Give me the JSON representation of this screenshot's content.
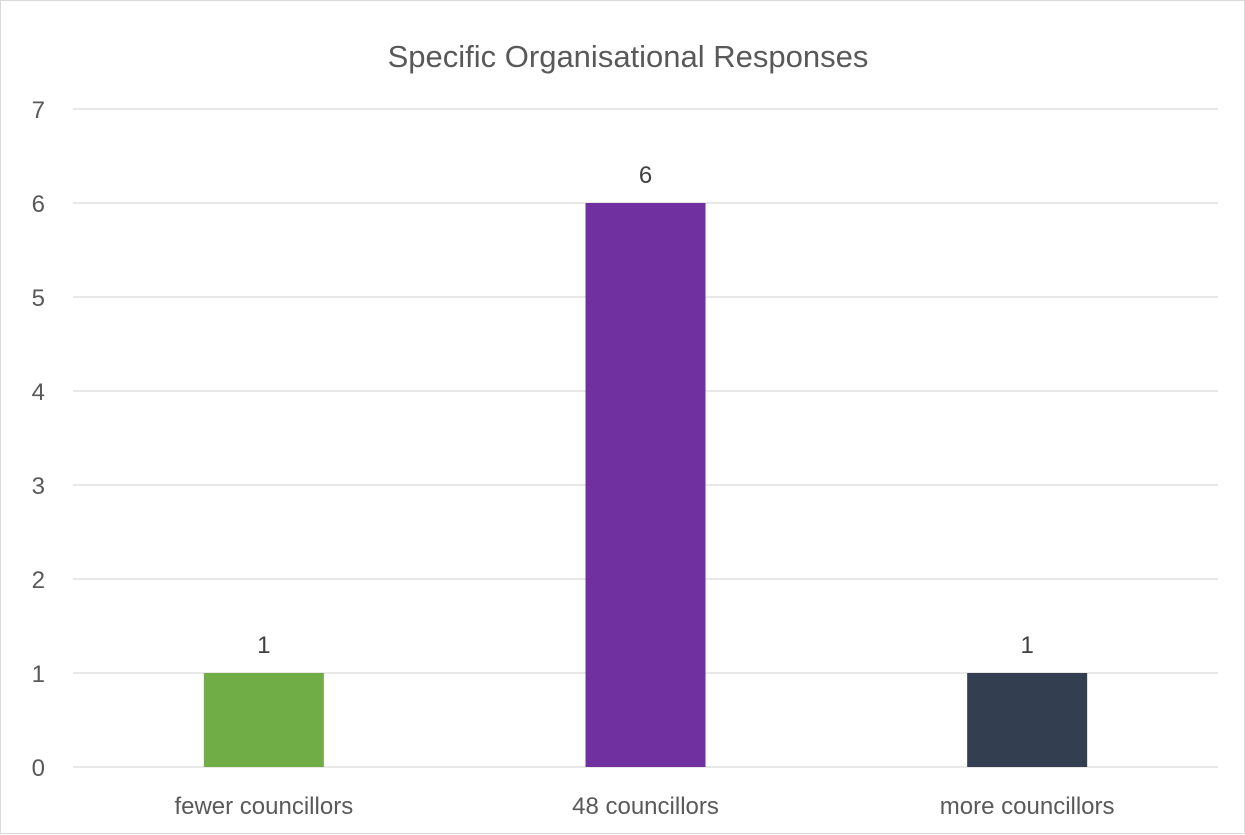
{
  "chart_data": {
    "type": "bar",
    "title": "Specific Organisational Responses",
    "xlabel": "",
    "ylabel": "",
    "categories": [
      "fewer councillors",
      "48 councillors",
      "more councillors"
    ],
    "values": [
      1,
      6,
      1
    ],
    "data_labels": [
      "1",
      "6",
      "1"
    ],
    "bar_colors": [
      "#70ad47",
      "#7030a0",
      "#333f50"
    ],
    "ylim": [
      0,
      7
    ],
    "yticks": [
      0,
      1,
      2,
      3,
      4,
      5,
      6,
      7
    ],
    "ytick_labels": [
      "0",
      "1",
      "2",
      "3",
      "4",
      "5",
      "6",
      "7"
    ],
    "grid": true,
    "legend": "none"
  }
}
